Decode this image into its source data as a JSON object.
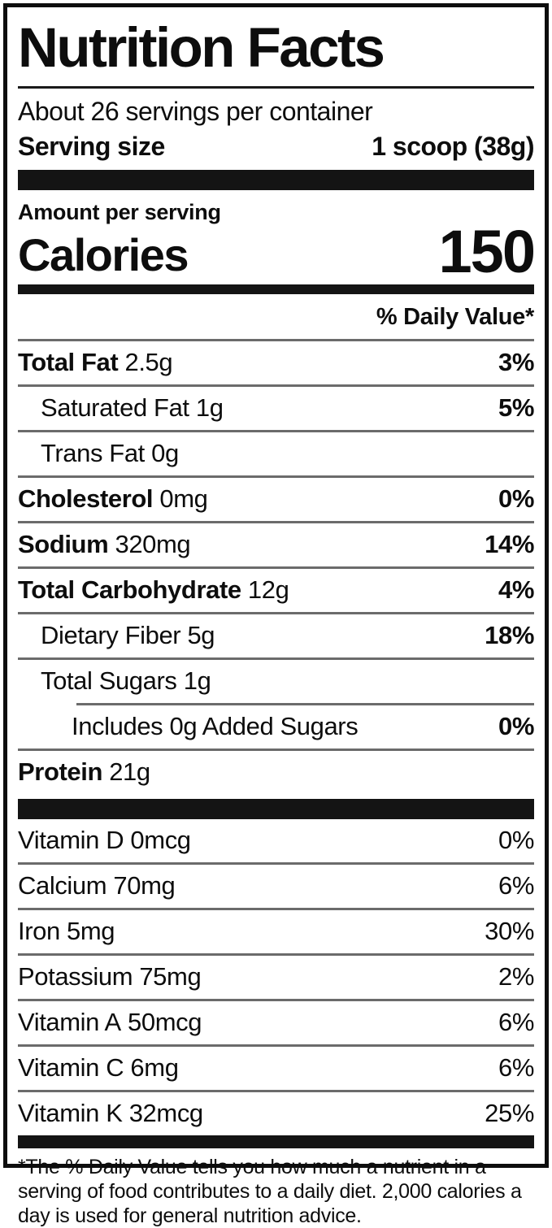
{
  "label": {
    "title": "Nutrition Facts",
    "servings_per_container": "About 26 servings per container",
    "serving_size_label": "Serving size",
    "serving_size_value": "1 scoop (38g)",
    "amount_per_serving": "Amount per serving",
    "calories_label": "Calories",
    "calories_value": "150",
    "daily_value_header": "% Daily Value*",
    "footnote": "*The % Daily Value tells you how much a nutrient in a serving of food contributes to a daily diet. 2,000 calories a day is used for general nutrition advice.",
    "colors": {
      "ink": "#0d0d0d",
      "divider_gray": "#6b6b6b",
      "background": "#ffffff"
    }
  },
  "nutrients": [
    {
      "name": "Total Fat",
      "amount": "2.5g",
      "dv": "3%",
      "name_bold": true,
      "dv_bold": true,
      "indent": 0
    },
    {
      "name": "Saturated Fat",
      "amount": "1g",
      "dv": "5%",
      "name_bold": false,
      "dv_bold": true,
      "indent": 1
    },
    {
      "name": "Trans Fat",
      "amount": "0g",
      "dv": "",
      "name_bold": false,
      "dv_bold": false,
      "indent": 1
    },
    {
      "name": "Cholesterol",
      "amount": "0mg",
      "dv": "0%",
      "name_bold": true,
      "dv_bold": true,
      "indent": 0
    },
    {
      "name": "Sodium",
      "amount": "320mg",
      "dv": "14%",
      "name_bold": true,
      "dv_bold": true,
      "indent": 0
    },
    {
      "name": "Total Carbohydrate",
      "amount": "12g",
      "dv": "4%",
      "name_bold": true,
      "dv_bold": true,
      "indent": 0
    },
    {
      "name": "Dietary Fiber",
      "amount": "5g",
      "dv": "18%",
      "name_bold": false,
      "dv_bold": true,
      "indent": 1
    },
    {
      "name": "Total Sugars",
      "amount": "1g",
      "dv": "",
      "name_bold": false,
      "dv_bold": false,
      "indent": 1
    },
    {
      "name": "Includes 0g Added Sugars",
      "amount": "",
      "dv": "0%",
      "name_bold": false,
      "dv_bold": true,
      "indent": 2
    },
    {
      "name": "Protein",
      "amount": "21g",
      "dv": "",
      "name_bold": true,
      "dv_bold": false,
      "indent": 0
    }
  ],
  "vitamins": [
    {
      "name": "Vitamin D",
      "amount": "0mcg",
      "dv": "0%",
      "name_bold": false,
      "dv_bold": false,
      "indent": 0
    },
    {
      "name": "Calcium",
      "amount": "70mg",
      "dv": "6%",
      "name_bold": false,
      "dv_bold": false,
      "indent": 0
    },
    {
      "name": "Iron",
      "amount": "5mg",
      "dv": "30%",
      "name_bold": false,
      "dv_bold": false,
      "indent": 0
    },
    {
      "name": "Potassium",
      "amount": "75mg",
      "dv": "2%",
      "name_bold": false,
      "dv_bold": false,
      "indent": 0
    },
    {
      "name": "Vitamin A",
      "amount": "50mcg",
      "dv": "6%",
      "name_bold": false,
      "dv_bold": false,
      "indent": 0
    },
    {
      "name": "Vitamin C",
      "amount": "6mg",
      "dv": "6%",
      "name_bold": false,
      "dv_bold": false,
      "indent": 0
    },
    {
      "name": "Vitamin K",
      "amount": "32mcg",
      "dv": "25%",
      "name_bold": false,
      "dv_bold": false,
      "indent": 0
    }
  ]
}
